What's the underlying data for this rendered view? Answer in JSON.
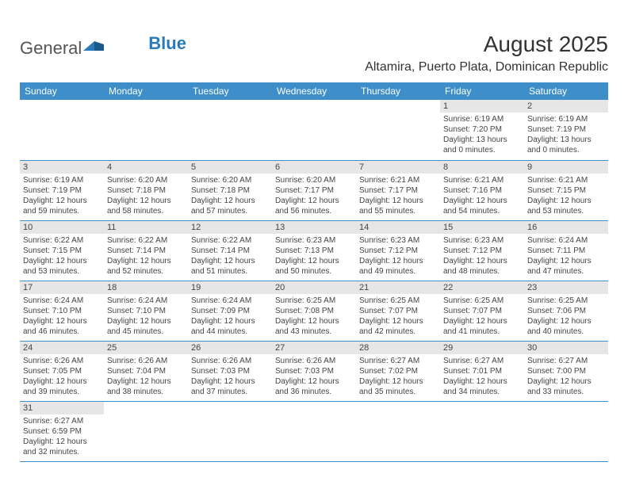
{
  "logo": {
    "general": "General",
    "blue": "Blue"
  },
  "title": "August 2025",
  "location": "Altamira, Puerto Plata, Dominican Republic",
  "colors": {
    "header_bg": "#3d8ec9",
    "header_text": "#ffffff",
    "daynum_bg": "#e6e6e6",
    "border": "#3d8ec9",
    "text": "#444444",
    "logo_blue": "#2a7ab9"
  },
  "daysOfWeek": [
    "Sunday",
    "Monday",
    "Tuesday",
    "Wednesday",
    "Thursday",
    "Friday",
    "Saturday"
  ],
  "startOffset": 5,
  "days": [
    {
      "n": 1,
      "sr": "6:19 AM",
      "ss": "7:20 PM",
      "dl": "13 hours and 0 minutes."
    },
    {
      "n": 2,
      "sr": "6:19 AM",
      "ss": "7:19 PM",
      "dl": "13 hours and 0 minutes."
    },
    {
      "n": 3,
      "sr": "6:19 AM",
      "ss": "7:19 PM",
      "dl": "12 hours and 59 minutes."
    },
    {
      "n": 4,
      "sr": "6:20 AM",
      "ss": "7:18 PM",
      "dl": "12 hours and 58 minutes."
    },
    {
      "n": 5,
      "sr": "6:20 AM",
      "ss": "7:18 PM",
      "dl": "12 hours and 57 minutes."
    },
    {
      "n": 6,
      "sr": "6:20 AM",
      "ss": "7:17 PM",
      "dl": "12 hours and 56 minutes."
    },
    {
      "n": 7,
      "sr": "6:21 AM",
      "ss": "7:17 PM",
      "dl": "12 hours and 55 minutes."
    },
    {
      "n": 8,
      "sr": "6:21 AM",
      "ss": "7:16 PM",
      "dl": "12 hours and 54 minutes."
    },
    {
      "n": 9,
      "sr": "6:21 AM",
      "ss": "7:15 PM",
      "dl": "12 hours and 53 minutes."
    },
    {
      "n": 10,
      "sr": "6:22 AM",
      "ss": "7:15 PM",
      "dl": "12 hours and 53 minutes."
    },
    {
      "n": 11,
      "sr": "6:22 AM",
      "ss": "7:14 PM",
      "dl": "12 hours and 52 minutes."
    },
    {
      "n": 12,
      "sr": "6:22 AM",
      "ss": "7:14 PM",
      "dl": "12 hours and 51 minutes."
    },
    {
      "n": 13,
      "sr": "6:23 AM",
      "ss": "7:13 PM",
      "dl": "12 hours and 50 minutes."
    },
    {
      "n": 14,
      "sr": "6:23 AM",
      "ss": "7:12 PM",
      "dl": "12 hours and 49 minutes."
    },
    {
      "n": 15,
      "sr": "6:23 AM",
      "ss": "7:12 PM",
      "dl": "12 hours and 48 minutes."
    },
    {
      "n": 16,
      "sr": "6:24 AM",
      "ss": "7:11 PM",
      "dl": "12 hours and 47 minutes."
    },
    {
      "n": 17,
      "sr": "6:24 AM",
      "ss": "7:10 PM",
      "dl": "12 hours and 46 minutes."
    },
    {
      "n": 18,
      "sr": "6:24 AM",
      "ss": "7:10 PM",
      "dl": "12 hours and 45 minutes."
    },
    {
      "n": 19,
      "sr": "6:24 AM",
      "ss": "7:09 PM",
      "dl": "12 hours and 44 minutes."
    },
    {
      "n": 20,
      "sr": "6:25 AM",
      "ss": "7:08 PM",
      "dl": "12 hours and 43 minutes."
    },
    {
      "n": 21,
      "sr": "6:25 AM",
      "ss": "7:07 PM",
      "dl": "12 hours and 42 minutes."
    },
    {
      "n": 22,
      "sr": "6:25 AM",
      "ss": "7:07 PM",
      "dl": "12 hours and 41 minutes."
    },
    {
      "n": 23,
      "sr": "6:25 AM",
      "ss": "7:06 PM",
      "dl": "12 hours and 40 minutes."
    },
    {
      "n": 24,
      "sr": "6:26 AM",
      "ss": "7:05 PM",
      "dl": "12 hours and 39 minutes."
    },
    {
      "n": 25,
      "sr": "6:26 AM",
      "ss": "7:04 PM",
      "dl": "12 hours and 38 minutes."
    },
    {
      "n": 26,
      "sr": "6:26 AM",
      "ss": "7:03 PM",
      "dl": "12 hours and 37 minutes."
    },
    {
      "n": 27,
      "sr": "6:26 AM",
      "ss": "7:03 PM",
      "dl": "12 hours and 36 minutes."
    },
    {
      "n": 28,
      "sr": "6:27 AM",
      "ss": "7:02 PM",
      "dl": "12 hours and 35 minutes."
    },
    {
      "n": 29,
      "sr": "6:27 AM",
      "ss": "7:01 PM",
      "dl": "12 hours and 34 minutes."
    },
    {
      "n": 30,
      "sr": "6:27 AM",
      "ss": "7:00 PM",
      "dl": "12 hours and 33 minutes."
    },
    {
      "n": 31,
      "sr": "6:27 AM",
      "ss": "6:59 PM",
      "dl": "12 hours and 32 minutes."
    }
  ],
  "labels": {
    "sunrise": "Sunrise:",
    "sunset": "Sunset:",
    "daylight": "Daylight:"
  }
}
